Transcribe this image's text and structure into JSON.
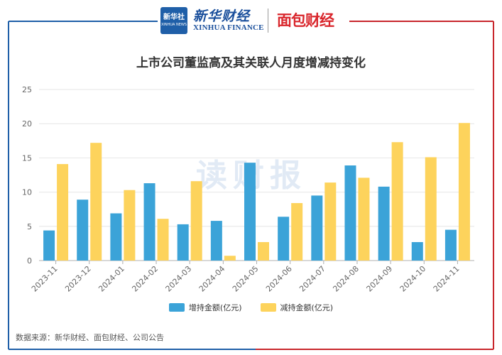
{
  "header": {
    "xinhua_badge_cn": "新华社",
    "xinhua_badge_en": "XINHUA NEWS",
    "xinhua_finance_cn": "新华财经",
    "xinhua_finance_en": "XINHUA FINANCE",
    "mianbao_brand": "面包财经"
  },
  "watermark": "读财报",
  "source": "数据来源：新华财经、面包财经、公司公告",
  "colors": {
    "increase": "#3ba3d8",
    "decrease": "#fdd35c",
    "frame_blue": "#1f5fa8",
    "frame_red": "#c8262c",
    "grid": "#e6e6e6"
  },
  "chart_data": {
    "type": "bar",
    "title": "上市公司董监高及其关联人月度增减持变化",
    "xlabel": "",
    "ylabel": "",
    "ylim": [
      0,
      25
    ],
    "yticks": [
      0,
      5,
      10,
      15,
      20,
      25
    ],
    "categories": [
      "2023-11",
      "2023-12",
      "2024-01",
      "2024-02",
      "2024-03",
      "2024-04",
      "2024-05",
      "2024-06",
      "2024-07",
      "2024-08",
      "2024-09",
      "2024-10",
      "2024-11"
    ],
    "series": [
      {
        "name": "增持金额(亿元)",
        "color": "#3ba3d8",
        "values": [
          4.4,
          8.9,
          6.9,
          11.3,
          5.3,
          5.8,
          14.3,
          6.4,
          9.5,
          13.9,
          10.8,
          2.7,
          4.5
        ]
      },
      {
        "name": "减持金额(亿元)",
        "color": "#fdd35c",
        "values": [
          14.1,
          17.2,
          10.3,
          6.1,
          11.6,
          0.7,
          2.7,
          8.4,
          11.4,
          12.1,
          17.3,
          15.1,
          20.1
        ]
      }
    ]
  }
}
